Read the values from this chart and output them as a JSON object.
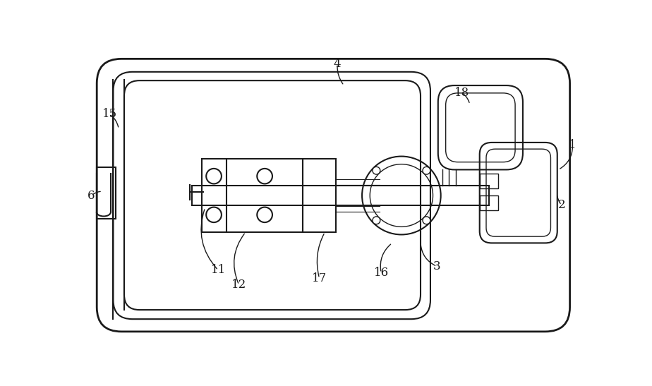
{
  "bg_color": "#ffffff",
  "line_color": "#1a1a1a",
  "fig_width": 9.24,
  "fig_height": 5.47,
  "lw_outer": 2.0,
  "lw_main": 1.5,
  "lw_thin": 1.0,
  "lw_hair": 0.8
}
